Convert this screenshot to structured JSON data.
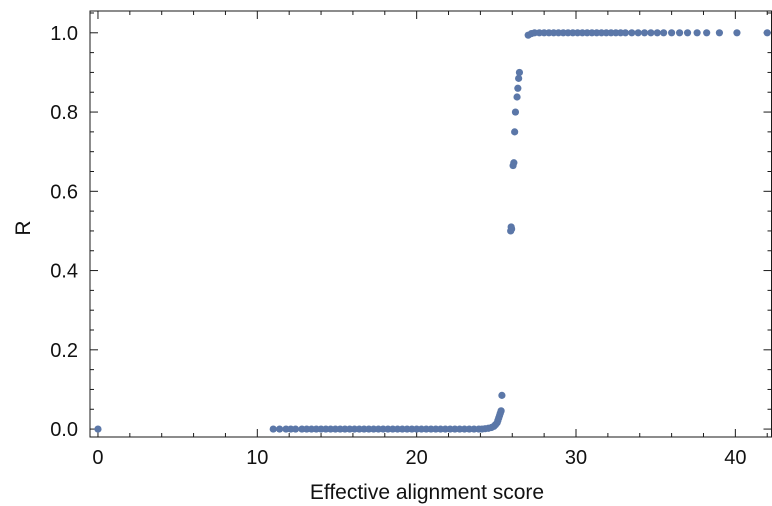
{
  "chart_data": {
    "type": "scatter",
    "title": "",
    "xlabel": "Effective alignment score",
    "ylabel": "R",
    "xlim": [
      -0.5,
      42.3
    ],
    "ylim": [
      -0.02,
      1.055
    ],
    "x_ticks": [
      0,
      10,
      20,
      30,
      40
    ],
    "x_tick_labels": [
      "0",
      "10",
      "20",
      "30",
      "40"
    ],
    "y_ticks": [
      0.0,
      0.2,
      0.4,
      0.6,
      0.8,
      1.0
    ],
    "y_tick_labels": [
      "0.0",
      "0.2",
      "0.4",
      "0.6",
      "0.8",
      "1.0"
    ],
    "grid": false,
    "legend": "none",
    "marker_color": "#5b77a8",
    "series": [
      {
        "points": [
          [
            0.0,
            0.0
          ],
          [
            11.0,
            0.0
          ],
          [
            11.4,
            0.0
          ],
          [
            11.8,
            0.0
          ],
          [
            12.1,
            0.0
          ],
          [
            12.4,
            0.0
          ],
          [
            12.8,
            0.0
          ],
          [
            13.1,
            0.0
          ],
          [
            13.4,
            0.0
          ],
          [
            13.7,
            0.0
          ],
          [
            14.0,
            0.0
          ],
          [
            14.3,
            0.0
          ],
          [
            14.6,
            0.0
          ],
          [
            14.9,
            0.0
          ],
          [
            15.2,
            0.0
          ],
          [
            15.5,
            0.0
          ],
          [
            15.8,
            0.0
          ],
          [
            16.1,
            0.0
          ],
          [
            16.4,
            0.0
          ],
          [
            16.7,
            0.0
          ],
          [
            17.0,
            0.0
          ],
          [
            17.3,
            0.0
          ],
          [
            17.6,
            0.0
          ],
          [
            17.9,
            0.0
          ],
          [
            18.2,
            0.0
          ],
          [
            18.5,
            0.0
          ],
          [
            18.8,
            0.0
          ],
          [
            19.1,
            0.0
          ],
          [
            19.4,
            0.0
          ],
          [
            19.7,
            0.0
          ],
          [
            20.0,
            0.0
          ],
          [
            20.3,
            0.0
          ],
          [
            20.6,
            0.0
          ],
          [
            20.9,
            0.0
          ],
          [
            21.2,
            0.0
          ],
          [
            21.5,
            0.0
          ],
          [
            21.8,
            0.0
          ],
          [
            22.1,
            0.0
          ],
          [
            22.4,
            0.0
          ],
          [
            22.7,
            0.0
          ],
          [
            23.0,
            0.0
          ],
          [
            23.3,
            0.0
          ],
          [
            23.6,
            0.0
          ],
          [
            23.9,
            0.0
          ],
          [
            24.1,
            0.0
          ],
          [
            24.3,
            0.001
          ],
          [
            24.5,
            0.002
          ],
          [
            24.7,
            0.004
          ],
          [
            24.85,
            0.007
          ],
          [
            24.95,
            0.011
          ],
          [
            25.05,
            0.016
          ],
          [
            25.1,
            0.022
          ],
          [
            25.15,
            0.028
          ],
          [
            25.2,
            0.034
          ],
          [
            25.25,
            0.04
          ],
          [
            25.3,
            0.046
          ],
          [
            25.35,
            0.085
          ],
          [
            25.9,
            0.5
          ],
          [
            25.93,
            0.51
          ],
          [
            25.96,
            0.505
          ],
          [
            26.05,
            0.665
          ],
          [
            26.1,
            0.672
          ],
          [
            26.15,
            0.75
          ],
          [
            26.2,
            0.8
          ],
          [
            26.3,
            0.838
          ],
          [
            26.35,
            0.86
          ],
          [
            26.4,
            0.885
          ],
          [
            26.45,
            0.9
          ],
          [
            27.0,
            0.994
          ],
          [
            27.2,
            0.998
          ],
          [
            27.4,
            1.0
          ],
          [
            27.7,
            1.0
          ],
          [
            28.0,
            1.0
          ],
          [
            28.3,
            1.0
          ],
          [
            28.6,
            1.0
          ],
          [
            28.9,
            1.0
          ],
          [
            29.2,
            1.0
          ],
          [
            29.5,
            1.0
          ],
          [
            29.8,
            1.0
          ],
          [
            30.1,
            1.0
          ],
          [
            30.4,
            1.0
          ],
          [
            30.7,
            1.0
          ],
          [
            31.0,
            1.0
          ],
          [
            31.3,
            1.0
          ],
          [
            31.6,
            1.0
          ],
          [
            31.9,
            1.0
          ],
          [
            32.2,
            1.0
          ],
          [
            32.5,
            1.0
          ],
          [
            32.8,
            1.0
          ],
          [
            33.1,
            1.0
          ],
          [
            33.5,
            1.0
          ],
          [
            33.9,
            1.0
          ],
          [
            34.3,
            1.0
          ],
          [
            34.7,
            1.0
          ],
          [
            35.1,
            1.0
          ],
          [
            35.5,
            1.0
          ],
          [
            36.0,
            1.0
          ],
          [
            36.5,
            1.0
          ],
          [
            37.0,
            1.0
          ],
          [
            37.6,
            1.0
          ],
          [
            38.2,
            1.0
          ],
          [
            39.0,
            1.0
          ],
          [
            40.1,
            1.0
          ],
          [
            42.0,
            1.0
          ]
        ]
      }
    ]
  }
}
